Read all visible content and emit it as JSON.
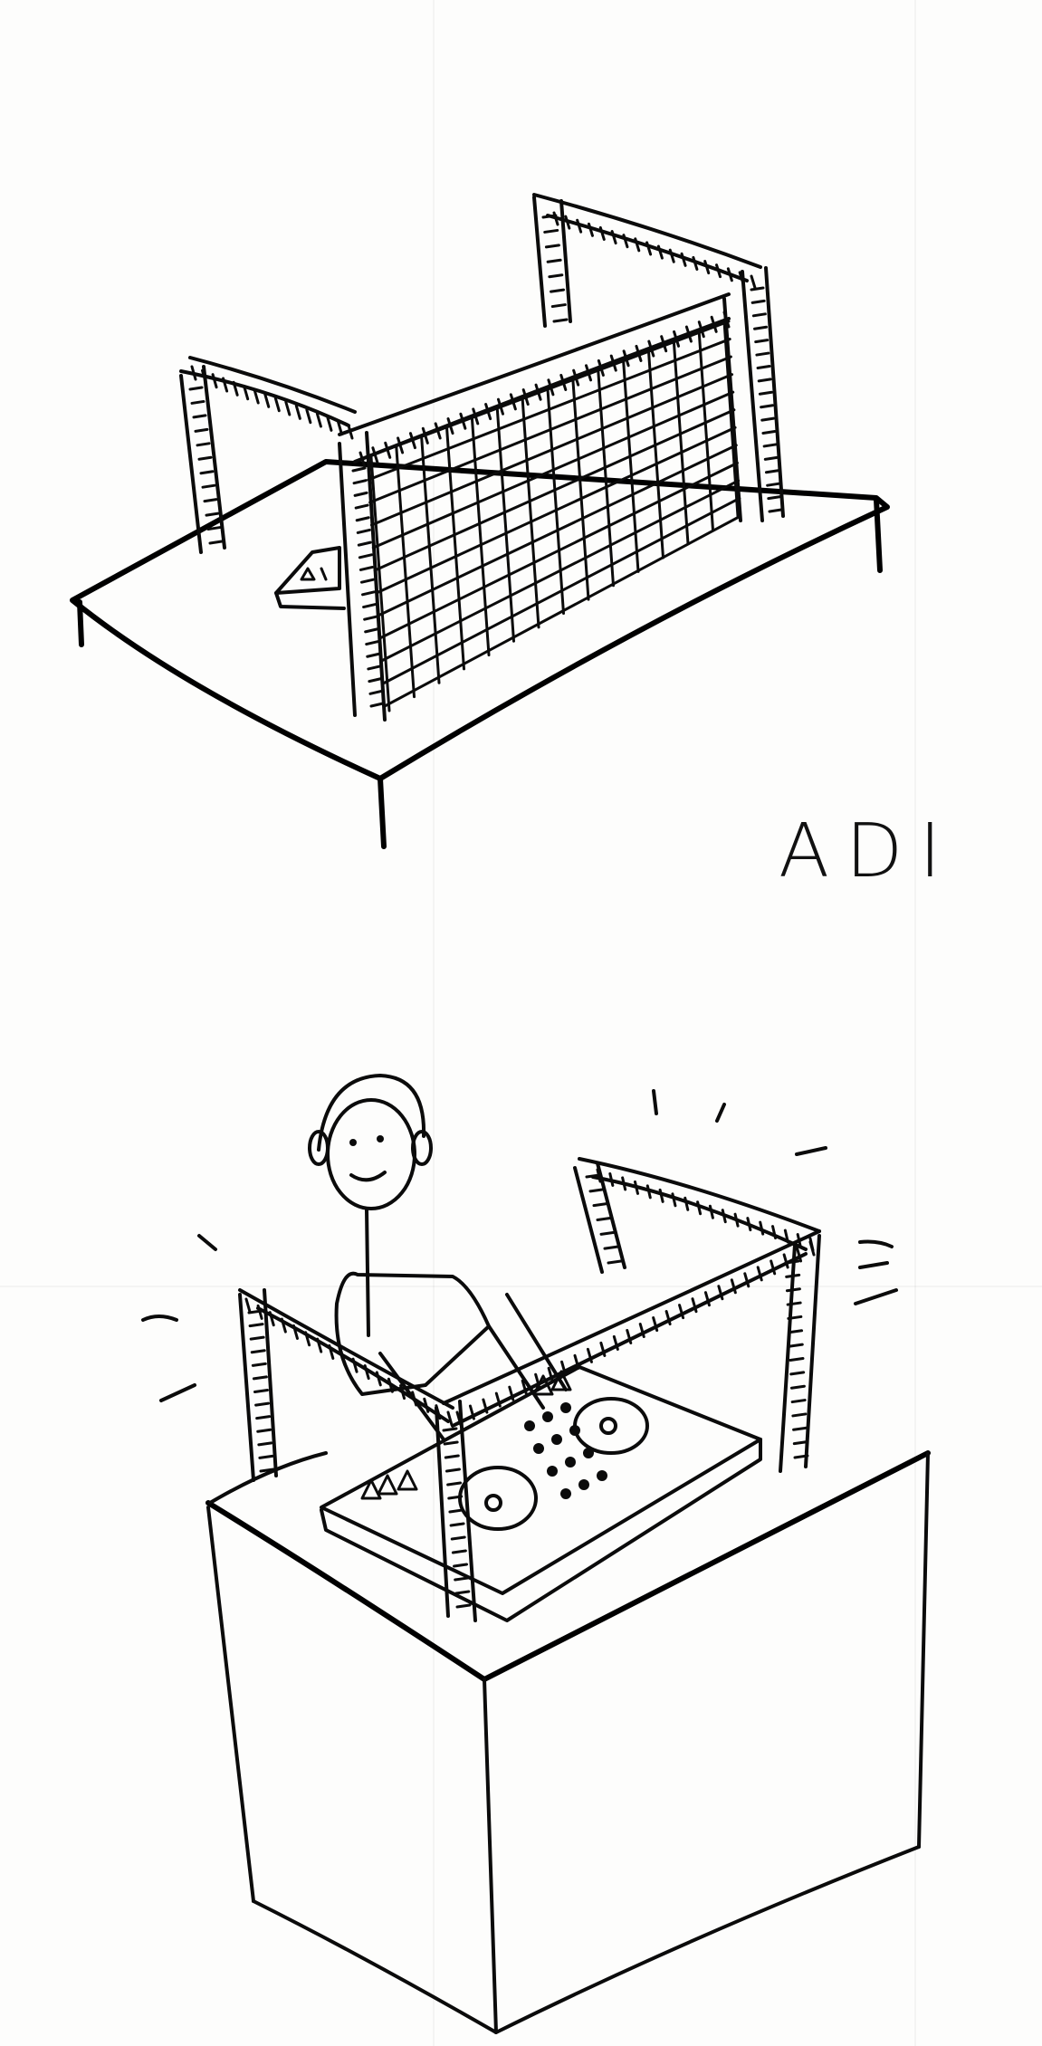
{
  "sketch": {
    "caption": "ADI"
  },
  "colors": {
    "paper": "#fdfdfc",
    "ink": "#0b0b0b"
  },
  "icons": {
    "top_scene": "goal-over-table-illustration",
    "bottom_scene": "dj-under-goal-illustration"
  }
}
